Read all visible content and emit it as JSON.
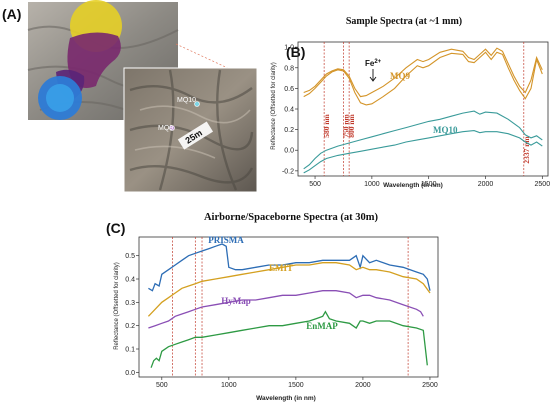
{
  "panels": {
    "a": {
      "label": "(A)",
      "scale_label": "25m",
      "markers": [
        "MQ10",
        "MQ9"
      ]
    },
    "b": {
      "label": "(B)"
    },
    "c": {
      "label": "(C)"
    }
  },
  "annotations": {
    "fe": "Fe",
    "fe_sup": "2+"
  },
  "chart_data": [
    {
      "type": "line",
      "title": "Sample Spectra (at ~1 mm)",
      "xlabel": "Wavelength (in nm)",
      "ylabel": "Reflectance (Offsetted for clarity)",
      "xlim": [
        350,
        2550
      ],
      "ylim": [
        -0.25,
        1.05
      ],
      "xticks": [
        500,
        1000,
        1500,
        2000,
        2500
      ],
      "yticks": [
        -0.2,
        0.0,
        0.2,
        0.4,
        0.6,
        0.8,
        1.0
      ],
      "grid": false,
      "series": [
        {
          "name": "MQ9",
          "color": "#d4952a",
          "lines": [
            {
              "x": [
                400,
                450,
                500,
                550,
                600,
                650,
                700,
                750,
                800,
                850,
                900,
                950,
                1000,
                1100,
                1200,
                1300,
                1400,
                1450,
                1500,
                1600,
                1700,
                1800,
                1850,
                1900,
                1950,
                2000,
                2050,
                2100,
                2150,
                2200,
                2250,
                2300,
                2350,
                2400,
                2450,
                2500
              ],
              "y": [
                0.56,
                0.58,
                0.62,
                0.68,
                0.74,
                0.77,
                0.79,
                0.78,
                0.72,
                0.6,
                0.52,
                0.53,
                0.56,
                0.62,
                0.7,
                0.8,
                0.88,
                0.86,
                0.88,
                0.95,
                0.98,
                0.96,
                0.9,
                0.88,
                0.93,
                0.98,
                0.92,
                0.99,
                0.96,
                0.84,
                0.72,
                0.62,
                0.56,
                0.68,
                0.9,
                0.78
              ]
            },
            {
              "x": [
                400,
                450,
                500,
                550,
                600,
                650,
                700,
                750,
                800,
                850,
                900,
                950,
                1000,
                1100,
                1200,
                1300,
                1400,
                1450,
                1500,
                1600,
                1700,
                1800,
                1850,
                1900,
                1950,
                2000,
                2050,
                2100,
                2150,
                2200,
                2250,
                2300,
                2350,
                2400,
                2450,
                2500
              ],
              "y": [
                0.52,
                0.55,
                0.6,
                0.66,
                0.72,
                0.76,
                0.78,
                0.77,
                0.7,
                0.56,
                0.46,
                0.44,
                0.45,
                0.52,
                0.6,
                0.72,
                0.82,
                0.8,
                0.82,
                0.9,
                0.94,
                0.93,
                0.86,
                0.85,
                0.9,
                0.95,
                0.88,
                0.95,
                0.93,
                0.8,
                0.68,
                0.58,
                0.5,
                0.6,
                0.88,
                0.74
              ]
            }
          ]
        },
        {
          "name": "MQ10",
          "color": "#3a9b9a",
          "lines": [
            {
              "x": [
                400,
                450,
                500,
                550,
                600,
                700,
                800,
                900,
                1000,
                1100,
                1200,
                1300,
                1400,
                1500,
                1600,
                1700,
                1800,
                1900,
                1950,
                2000,
                2100,
                2200,
                2300,
                2350,
                2400,
                2450,
                2500
              ],
              "y": [
                -0.18,
                -0.14,
                -0.08,
                -0.03,
                0.0,
                0.04,
                0.07,
                0.1,
                0.13,
                0.16,
                0.19,
                0.22,
                0.25,
                0.28,
                0.3,
                0.33,
                0.36,
                0.38,
                0.35,
                0.37,
                0.36,
                0.3,
                0.22,
                0.15,
                0.12,
                0.14,
                0.1
              ]
            },
            {
              "x": [
                400,
                450,
                500,
                550,
                600,
                700,
                800,
                900,
                1000,
                1100,
                1200,
                1300,
                1400,
                1500,
                1600,
                1700,
                1800,
                1900,
                1950,
                2000,
                2100,
                2200,
                2300,
                2350,
                2400,
                2450,
                2500
              ],
              "y": [
                -0.22,
                -0.19,
                -0.15,
                -0.11,
                -0.08,
                -0.05,
                -0.03,
                -0.01,
                0.01,
                0.03,
                0.05,
                0.08,
                0.1,
                0.12,
                0.14,
                0.16,
                0.18,
                0.19,
                0.17,
                0.18,
                0.18,
                0.16,
                0.12,
                0.08,
                0.05,
                0.08,
                0.04
              ]
            }
          ]
        }
      ],
      "vlines": [
        {
          "x": 580,
          "label": "580 nm"
        },
        {
          "x": 750,
          "label": "750 nm"
        },
        {
          "x": 800,
          "label": "800 nm"
        },
        {
          "x": 2337,
          "label": "2337 nm"
        }
      ]
    },
    {
      "type": "line",
      "title": "Airborne/Spaceborne Spectra (at 30m)",
      "xlabel": "Wavelength (in nm)",
      "ylabel": "Reflectance (Offsetted for clarity)",
      "xlim": [
        330,
        2560
      ],
      "ylim": [
        -0.02,
        0.58
      ],
      "xticks": [
        500,
        1000,
        1500,
        2000,
        2500
      ],
      "yticks": [
        0.0,
        0.1,
        0.2,
        0.3,
        0.4,
        0.5
      ],
      "grid": false,
      "series": [
        {
          "name": "PRISMA",
          "color": "#2d6db5",
          "x": [
            400,
            430,
            450,
            480,
            500,
            550,
            600,
            650,
            700,
            750,
            800,
            850,
            900,
            950,
            980,
            1000,
            1050,
            1100,
            1200,
            1300,
            1400,
            1500,
            1600,
            1700,
            1800,
            1900,
            1950,
            1980,
            2000,
            2050,
            2100,
            2200,
            2300,
            2400,
            2450,
            2480,
            2500
          ],
          "y": [
            0.36,
            0.35,
            0.38,
            0.37,
            0.42,
            0.44,
            0.46,
            0.48,
            0.5,
            0.51,
            0.52,
            0.53,
            0.54,
            0.55,
            0.54,
            0.45,
            0.44,
            0.44,
            0.45,
            0.46,
            0.46,
            0.47,
            0.47,
            0.48,
            0.48,
            0.48,
            0.5,
            0.45,
            0.5,
            0.47,
            0.48,
            0.46,
            0.45,
            0.43,
            0.42,
            0.4,
            0.35
          ]
        },
        {
          "name": "EMIT",
          "color": "#d4a020",
          "x": [
            400,
            450,
            500,
            550,
            600,
            650,
            700,
            750,
            800,
            900,
            1000,
            1100,
            1200,
            1300,
            1400,
            1500,
            1600,
            1700,
            1800,
            1900,
            1950,
            2000,
            2050,
            2100,
            2200,
            2300,
            2400,
            2450,
            2500
          ],
          "y": [
            0.24,
            0.27,
            0.3,
            0.32,
            0.34,
            0.36,
            0.37,
            0.38,
            0.39,
            0.4,
            0.41,
            0.42,
            0.43,
            0.44,
            0.45,
            0.46,
            0.46,
            0.47,
            0.47,
            0.46,
            0.44,
            0.45,
            0.44,
            0.44,
            0.43,
            0.41,
            0.4,
            0.38,
            0.34
          ]
        },
        {
          "name": "HyMap",
          "color": "#8a4fb5",
          "x": [
            400,
            450,
            500,
            550,
            600,
            650,
            700,
            750,
            800,
            900,
            1000,
            1100,
            1200,
            1300,
            1400,
            1500,
            1600,
            1700,
            1800,
            1900,
            1950,
            2000,
            2050,
            2100,
            2200,
            2300,
            2400,
            2430,
            2450
          ],
          "y": [
            0.19,
            0.2,
            0.21,
            0.22,
            0.24,
            0.25,
            0.26,
            0.27,
            0.28,
            0.29,
            0.3,
            0.31,
            0.31,
            0.32,
            0.33,
            0.33,
            0.34,
            0.35,
            0.35,
            0.34,
            0.32,
            0.33,
            0.33,
            0.32,
            0.31,
            0.29,
            0.27,
            0.26,
            0.24
          ]
        },
        {
          "name": "EnMAP",
          "color": "#2e9a44",
          "x": [
            420,
            440,
            460,
            480,
            500,
            550,
            600,
            650,
            700,
            750,
            800,
            900,
            1000,
            1100,
            1200,
            1300,
            1400,
            1500,
            1600,
            1650,
            1700,
            1720,
            1750,
            1800,
            1900,
            1950,
            1980,
            2000,
            2050,
            2100,
            2200,
            2300,
            2400,
            2450,
            2480
          ],
          "y": [
            0.02,
            0.05,
            0.06,
            0.05,
            0.09,
            0.11,
            0.12,
            0.13,
            0.14,
            0.15,
            0.15,
            0.16,
            0.17,
            0.18,
            0.19,
            0.2,
            0.2,
            0.21,
            0.22,
            0.23,
            0.24,
            0.26,
            0.23,
            0.22,
            0.21,
            0.19,
            0.22,
            0.22,
            0.21,
            0.22,
            0.22,
            0.2,
            0.19,
            0.18,
            0.03
          ]
        }
      ],
      "vlines": [
        580,
        750,
        800,
        2337
      ]
    }
  ]
}
